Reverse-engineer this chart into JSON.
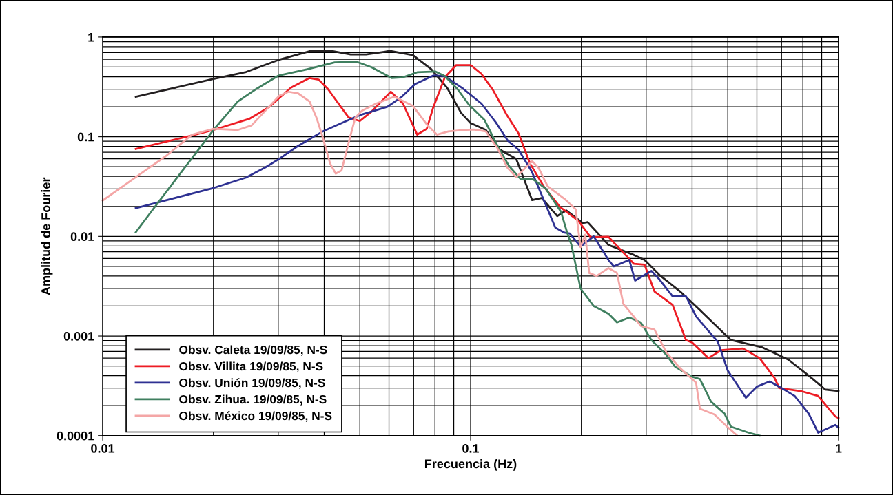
{
  "chart_data": {
    "type": "line",
    "xlabel": "Frecuencia (Hz)",
    "ylabel": "Amplitud de Fourier",
    "log": "xy",
    "xlim": [
      0.01,
      1
    ],
    "ylim": [
      0.0001,
      1
    ],
    "xticks": [
      0.01,
      0.1,
      1
    ],
    "yticks": [
      0.0001,
      0.001,
      0.01,
      0.1,
      1
    ],
    "grid": true,
    "legend": "bottom left",
    "marker": "none",
    "line_style": "solid",
    "series": [
      {
        "name": "Obsv. Caleta 19/09/85, N-S",
        "color": "#231f20",
        "x": [
          0.0123,
          0.02,
          0.0244,
          0.03,
          0.037,
          0.0415,
          0.0472,
          0.052,
          0.0586,
          0.0603,
          0.0697,
          0.0782,
          0.0863,
          0.0942,
          0.1,
          0.11,
          0.12,
          0.133,
          0.147,
          0.156,
          0.172,
          0.182,
          0.202,
          0.208,
          0.237,
          0.278,
          0.297,
          0.326,
          0.371,
          0.415,
          0.51,
          0.62,
          0.73,
          0.83,
          0.92,
          1.0
        ],
        "values": [
          0.252,
          0.381,
          0.444,
          0.589,
          0.73,
          0.73,
          0.67,
          0.67,
          0.715,
          0.727,
          0.66,
          0.475,
          0.311,
          0.174,
          0.137,
          0.117,
          0.0743,
          0.06,
          0.0231,
          0.0243,
          0.016,
          0.0182,
          0.0136,
          0.0139,
          0.0082,
          0.0065,
          0.0058,
          0.0041,
          0.0028,
          0.0019,
          0.00091,
          0.00077,
          0.00058,
          0.0004,
          0.00029,
          0.00028
        ]
      },
      {
        "name": "Obsv. Villita 19/09/85, N-S",
        "color": "#ed1c24",
        "x": [
          0.0123,
          0.0173,
          0.02,
          0.0251,
          0.0283,
          0.0325,
          0.0365,
          0.0386,
          0.0409,
          0.0466,
          0.05,
          0.0537,
          0.0607,
          0.0655,
          0.0716,
          0.076,
          0.079,
          0.0851,
          0.0914,
          0.1,
          0.107,
          0.115,
          0.125,
          0.135,
          0.145,
          0.158,
          0.175,
          0.196,
          0.212,
          0.237,
          0.257,
          0.278,
          0.297,
          0.316,
          0.354,
          0.385,
          0.4,
          0.443,
          0.48,
          0.55,
          0.61,
          0.67,
          0.69,
          0.79,
          0.88,
          0.98,
          1.0
        ],
        "values": [
          0.0755,
          0.102,
          0.117,
          0.152,
          0.198,
          0.311,
          0.389,
          0.375,
          0.303,
          0.156,
          0.144,
          0.178,
          0.283,
          0.215,
          0.105,
          0.12,
          0.193,
          0.395,
          0.524,
          0.524,
          0.428,
          0.295,
          0.169,
          0.108,
          0.054,
          0.0318,
          0.0197,
          0.0144,
          0.0098,
          0.0099,
          0.0072,
          0.0053,
          0.0052,
          0.0028,
          0.00205,
          0.00091,
          0.00086,
          0.0006,
          0.00072,
          0.00075,
          0.0006,
          0.00038,
          0.0003,
          0.00028,
          0.00025,
          0.000156,
          0.00015
        ]
      },
      {
        "name": "Obsv. Unión 19/09/85, N-S",
        "color": "#2e3192",
        "x": [
          0.0123,
          0.02,
          0.0245,
          0.0277,
          0.03,
          0.0339,
          0.0397,
          0.05,
          0.0594,
          0.065,
          0.0706,
          0.0792,
          0.085,
          0.0955,
          0.107,
          0.117,
          0.126,
          0.135,
          0.1466,
          0.16,
          0.17,
          0.18,
          0.186,
          0.199,
          0.216,
          0.237,
          0.245,
          0.27,
          0.28,
          0.31,
          0.326,
          0.354,
          0.385,
          0.41,
          0.47,
          0.5,
          0.56,
          0.6,
          0.65,
          0.7,
          0.76,
          0.83,
          0.88,
          0.98,
          1.0
        ],
        "values": [
          0.0192,
          0.0306,
          0.0389,
          0.0494,
          0.0591,
          0.0805,
          0.1135,
          0.165,
          0.2,
          0.252,
          0.337,
          0.412,
          0.406,
          0.303,
          0.215,
          0.14,
          0.092,
          0.074,
          0.0449,
          0.0208,
          0.0122,
          0.0109,
          0.0107,
          0.0079,
          0.01,
          0.0058,
          0.005,
          0.0058,
          0.0036,
          0.0045,
          0.0037,
          0.0025,
          0.0025,
          0.00157,
          0.00087,
          0.00045,
          0.00024,
          0.00031,
          0.00035,
          0.0003,
          0.00025,
          0.000166,
          0.000107,
          0.000128,
          0.00012
        ]
      },
      {
        "name": "Obsv. Zihua. 19/09/85, N-S",
        "color": "#3f7f5f",
        "x": [
          0.0123,
          0.0137,
          0.0165,
          0.02,
          0.0233,
          0.0262,
          0.03,
          0.036,
          0.0427,
          0.049,
          0.0537,
          0.061,
          0.0655,
          0.0716,
          0.0803,
          0.0851,
          0.092,
          0.099,
          0.109,
          0.118,
          0.127,
          0.137,
          0.147,
          0.16,
          0.176,
          0.183,
          0.188,
          0.199,
          0.216,
          0.237,
          0.25,
          0.27,
          0.29,
          0.31,
          0.34,
          0.36,
          0.4,
          0.42,
          0.45,
          0.49,
          0.51,
          0.57,
          0.61
        ],
        "values": [
          0.011,
          0.0187,
          0.0461,
          0.117,
          0.226,
          0.303,
          0.41,
          0.476,
          0.558,
          0.566,
          0.5,
          0.389,
          0.395,
          0.444,
          0.451,
          0.406,
          0.303,
          0.209,
          0.148,
          0.0826,
          0.0513,
          0.0373,
          0.038,
          0.0302,
          0.0177,
          0.0109,
          0.0082,
          0.003,
          0.002,
          0.00167,
          0.00137,
          0.00153,
          0.00137,
          0.00091,
          0.00065,
          0.00049,
          0.00039,
          0.00037,
          0.00022,
          0.000166,
          0.000123,
          0.000107,
          0.0001
        ]
      },
      {
        "name": "Obsv. México 19/09/85, N-S",
        "color": "#f4a6a6",
        "x": [
          0.01,
          0.0123,
          0.0148,
          0.0175,
          0.02,
          0.0233,
          0.0254,
          0.0277,
          0.0302,
          0.032,
          0.034,
          0.0365,
          0.0381,
          0.0397,
          0.0415,
          0.043,
          0.0446,
          0.0466,
          0.0486,
          0.0507,
          0.0553,
          0.062,
          0.0697,
          0.076,
          0.081,
          0.087,
          0.0955,
          0.102,
          0.11,
          0.118,
          0.126,
          0.133,
          0.147,
          0.153,
          0.162,
          0.18,
          0.193,
          0.199,
          0.205,
          0.21,
          0.22,
          0.237,
          0.25,
          0.26,
          0.278,
          0.29,
          0.316,
          0.34,
          0.37,
          0.41,
          0.42,
          0.46,
          0.49,
          0.53
        ],
        "values": [
          0.0229,
          0.0393,
          0.0634,
          0.105,
          0.12,
          0.117,
          0.13,
          0.183,
          0.258,
          0.283,
          0.272,
          0.226,
          0.156,
          0.097,
          0.054,
          0.0426,
          0.046,
          0.087,
          0.156,
          0.183,
          0.215,
          0.252,
          0.204,
          0.133,
          0.105,
          0.113,
          0.117,
          0.118,
          0.113,
          0.078,
          0.0487,
          0.0393,
          0.057,
          0.0487,
          0.0318,
          0.0238,
          0.0187,
          0.0078,
          0.0104,
          0.0043,
          0.004,
          0.0048,
          0.0043,
          0.0021,
          0.00156,
          0.00126,
          0.00116,
          0.00069,
          0.00048,
          0.00034,
          0.000186,
          0.000163,
          0.00013,
          0.0001
        ]
      }
    ]
  }
}
